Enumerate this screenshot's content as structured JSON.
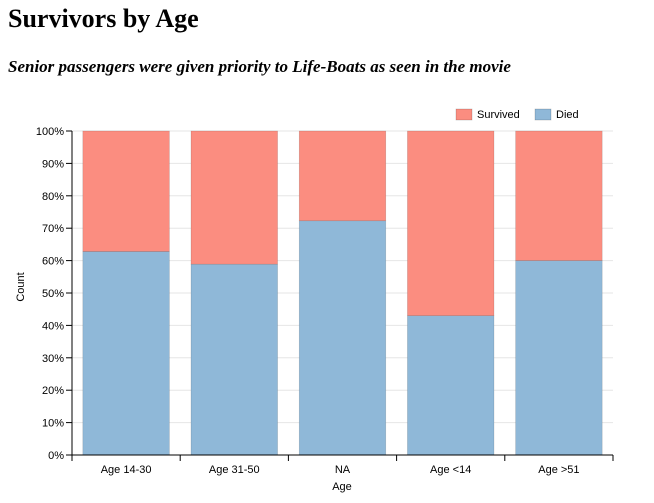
{
  "page": {
    "title": "Survivors by Age",
    "subtitle": "Senior passengers were given priority to Life-Boats as seen in the movie"
  },
  "chart_data": {
    "type": "bar",
    "stacked": true,
    "normalized": true,
    "xlabel": "Age",
    "ylabel": "Count",
    "categories": [
      "Age 14-30",
      "Age 31-50",
      "NA",
      "Age <14",
      "Age >51"
    ],
    "series": [
      {
        "name": "Died",
        "color": "#8fb8d8",
        "values": [
          62.8,
          58.9,
          72.3,
          43.0,
          60.0
        ]
      },
      {
        "name": "Survived",
        "color": "#fb8d80",
        "values": [
          37.2,
          41.1,
          27.7,
          57.0,
          40.0
        ]
      }
    ],
    "legend_order": [
      "Survived",
      "Died"
    ],
    "ylim": [
      0,
      100
    ],
    "yticks": [
      "0%",
      "10%",
      "20%",
      "30%",
      "40%",
      "50%",
      "60%",
      "70%",
      "80%",
      "90%",
      "100%"
    ],
    "grid": "horizontal",
    "legend_position": "top-right"
  }
}
